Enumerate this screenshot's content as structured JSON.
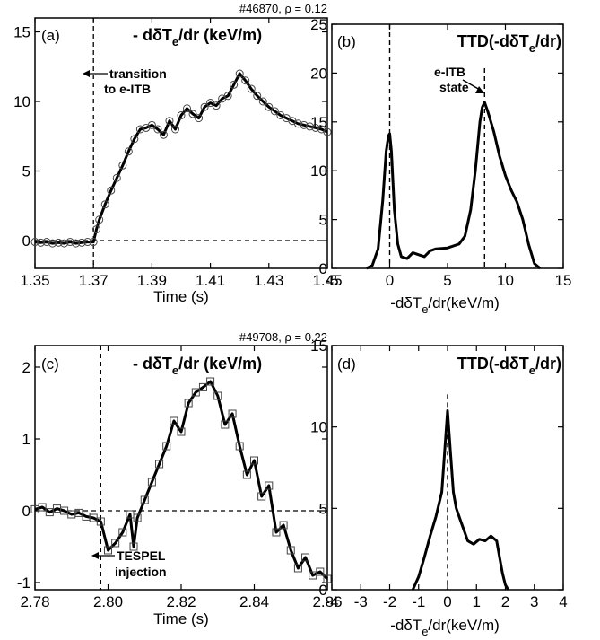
{
  "colors": {
    "line": "#000000",
    "background": "#ffffff"
  },
  "chart_data": [
    {
      "panel": "(a)",
      "type": "line",
      "marker": "circle",
      "shot_label": "#46870, ρ = 0.12",
      "title": "- dδT",
      "title_sub": "e",
      "title_rest": "/dr (keV/m)",
      "xlabel": "Time (s)",
      "xlim": [
        1.35,
        1.45
      ],
      "ylim": [
        -2,
        16
      ],
      "xticks": [
        1.35,
        1.37,
        1.39,
        1.41,
        1.43,
        1.45
      ],
      "yticks": [
        0,
        5,
        10,
        15
      ],
      "vline_x": 1.37,
      "hline_y": 0,
      "annotations": [
        "transition",
        "to e-ITB"
      ],
      "x": [
        1.35,
        1.352,
        1.354,
        1.356,
        1.358,
        1.36,
        1.362,
        1.364,
        1.366,
        1.368,
        1.37,
        1.371,
        1.372,
        1.374,
        1.376,
        1.378,
        1.38,
        1.382,
        1.384,
        1.386,
        1.388,
        1.39,
        1.392,
        1.394,
        1.396,
        1.398,
        1.4,
        1.402,
        1.404,
        1.406,
        1.408,
        1.41,
        1.412,
        1.414,
        1.416,
        1.418,
        1.42,
        1.422,
        1.424,
        1.426,
        1.428,
        1.43,
        1.432,
        1.434,
        1.436,
        1.438,
        1.44,
        1.442,
        1.444,
        1.446,
        1.448,
        1.45
      ],
      "y": [
        -0.1,
        -0.15,
        -0.1,
        -0.2,
        -0.15,
        -0.2,
        -0.1,
        -0.2,
        -0.15,
        -0.1,
        -0.1,
        0.8,
        1.5,
        2.6,
        3.6,
        4.5,
        5.4,
        6.4,
        7.3,
        8.0,
        8.1,
        8.3,
        8.0,
        7.6,
        8.6,
        8.0,
        9.0,
        9.5,
        9.1,
        8.8,
        9.6,
        9.9,
        9.7,
        10.2,
        10.4,
        11.2,
        12.0,
        11.5,
        10.9,
        10.4,
        10.0,
        9.6,
        9.3,
        9.0,
        8.8,
        8.6,
        8.4,
        8.3,
        8.2,
        8.1,
        8.0,
        7.8
      ]
    },
    {
      "panel": "(b)",
      "type": "line",
      "title": "TTD(-dδT",
      "title_sub": "e",
      "title_rest": "/dr)",
      "xlabel_pre": "-dδT",
      "xlabel_sub": "e",
      "xlabel_rest": "/dr(keV/m)",
      "xlim": [
        -5,
        15
      ],
      "ylim": [
        0,
        25
      ],
      "xticks": [
        -5,
        0,
        5,
        10,
        15
      ],
      "yticks": [
        0,
        5,
        10,
        15,
        20,
        25
      ],
      "vlines_x": [
        0,
        8.2
      ],
      "annotations": [
        "e-ITB",
        "state"
      ],
      "x": [
        -2.0,
        -1.5,
        -1.0,
        -0.6,
        -0.3,
        -0.1,
        0.0,
        0.15,
        0.4,
        0.7,
        1.0,
        1.5,
        2.0,
        2.5,
        3.0,
        3.5,
        4.0,
        5.0,
        6.0,
        6.5,
        7.0,
        7.4,
        7.8,
        8.0,
        8.2,
        8.5,
        9.0,
        9.5,
        10.0,
        10.5,
        11.0,
        11.5,
        12.0,
        12.5,
        13.0
      ],
      "y": [
        0,
        0.3,
        2.0,
        7.0,
        12.0,
        13.6,
        13.8,
        12.0,
        6.0,
        2.5,
        1.2,
        1.0,
        1.6,
        1.4,
        1.2,
        1.8,
        2.0,
        2.1,
        2.5,
        3.3,
        6.0,
        10.0,
        15.0,
        16.5,
        17.0,
        16.0,
        14.0,
        11.5,
        9.5,
        8.0,
        6.8,
        5.0,
        2.5,
        0.5,
        0
      ]
    },
    {
      "panel": "(c)",
      "type": "line",
      "marker": "square",
      "shot_label": "#49708, ρ = 0.22",
      "title": "- dδT",
      "title_sub": "e",
      "title_rest": "/dr (keV/m)",
      "xlabel": "Time (s)",
      "xlim": [
        2.78,
        2.86
      ],
      "ylim": [
        -1.1,
        2.3
      ],
      "xticks": [
        2.78,
        2.8,
        2.82,
        2.84,
        2.86
      ],
      "yticks": [
        -1,
        0,
        1,
        2
      ],
      "vline_x": 2.798,
      "hline_y": 0,
      "annotations": [
        "TESPEL",
        "injection"
      ],
      "x": [
        2.78,
        2.782,
        2.784,
        2.786,
        2.788,
        2.79,
        2.792,
        2.794,
        2.796,
        2.798,
        2.8,
        2.802,
        2.804,
        2.806,
        2.807,
        2.808,
        2.81,
        2.812,
        2.814,
        2.816,
        2.818,
        2.82,
        2.822,
        2.824,
        2.826,
        2.828,
        2.83,
        2.832,
        2.834,
        2.836,
        2.838,
        2.84,
        2.842,
        2.844,
        2.846,
        2.848,
        2.85,
        2.852,
        2.854,
        2.856,
        2.858,
        2.86
      ],
      "y": [
        0.02,
        0.05,
        -0.02,
        0.03,
        0.0,
        -0.05,
        -0.03,
        -0.08,
        -0.1,
        -0.15,
        -0.55,
        -0.45,
        -0.3,
        -0.05,
        -0.5,
        -0.1,
        0.15,
        0.4,
        0.65,
        0.9,
        1.25,
        1.1,
        1.5,
        1.65,
        1.72,
        1.8,
        1.6,
        1.2,
        1.35,
        0.9,
        0.5,
        0.7,
        0.2,
        0.35,
        -0.3,
        -0.2,
        -0.55,
        -0.8,
        -0.65,
        -0.9,
        -0.85,
        -0.95
      ]
    },
    {
      "panel": "(d)",
      "type": "line",
      "title": "TTD(-dδT",
      "title_sub": "e",
      "title_rest": "/dr)",
      "xlabel_pre": "-dδT",
      "xlabel_sub": "e",
      "xlabel_rest": "/dr(keV/m)",
      "xlim": [
        -4,
        4
      ],
      "ylim": [
        0,
        15
      ],
      "xticks": [
        -4,
        -3,
        -2,
        -1,
        0,
        1,
        2,
        3,
        4
      ],
      "yticks": [
        0,
        5,
        10,
        15
      ],
      "vlines_x": [
        0
      ],
      "x": [
        -1.2,
        -1.0,
        -0.8,
        -0.6,
        -0.4,
        -0.2,
        -0.1,
        0.0,
        0.1,
        0.2,
        0.3,
        0.5,
        0.7,
        0.9,
        1.1,
        1.3,
        1.5,
        1.7,
        1.8,
        1.9,
        2.0,
        2.1
      ],
      "y": [
        0,
        0.8,
        2.0,
        3.3,
        4.5,
        6.0,
        8.5,
        11.0,
        8.5,
        6.0,
        5.0,
        4.0,
        3.0,
        2.8,
        3.1,
        3.0,
        3.3,
        3.0,
        2.0,
        1.0,
        0.3,
        0
      ]
    }
  ]
}
